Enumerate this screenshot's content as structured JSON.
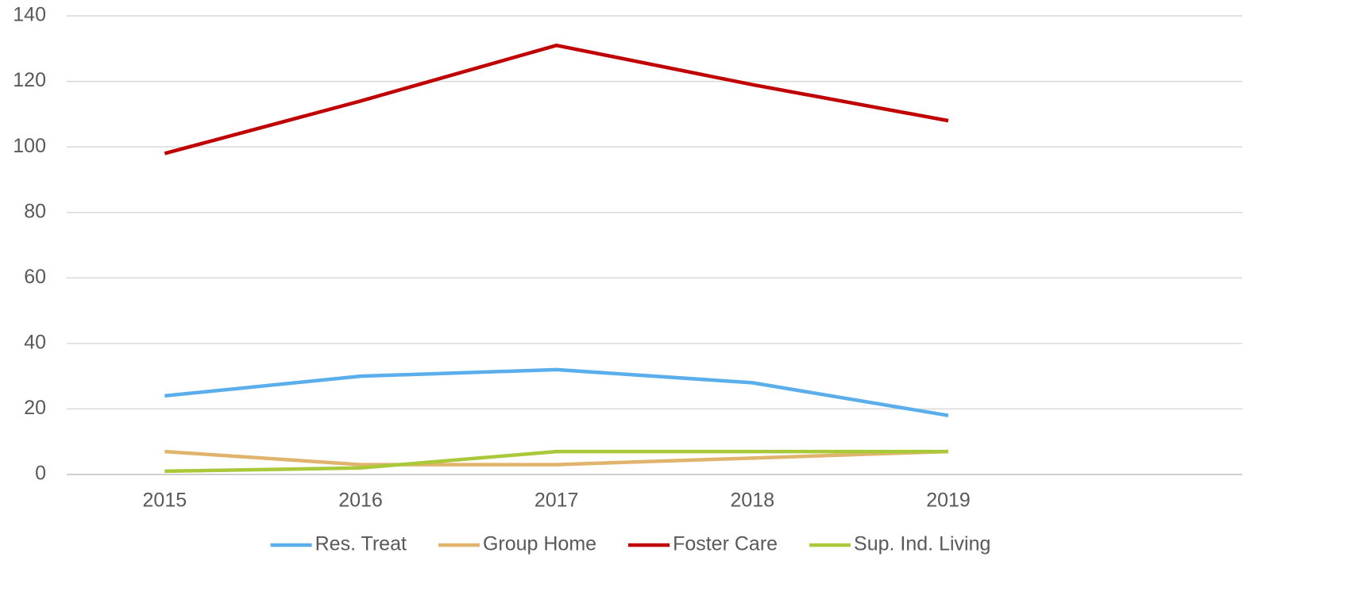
{
  "chart_data": {
    "type": "line",
    "categories": [
      "2015",
      "2016",
      "2017",
      "2018",
      "2019",
      null
    ],
    "series": [
      {
        "name": "Res. Treat",
        "color": "#5aaeeb",
        "values": [
          24,
          30,
          32,
          28,
          18,
          null
        ]
      },
      {
        "name": "Group Home",
        "color": "#e1b46e",
        "values": [
          7,
          3,
          3,
          5,
          7,
          null
        ]
      },
      {
        "name": "Foster Care",
        "color": "#c00000",
        "values": [
          98,
          114,
          131,
          119,
          108,
          null
        ]
      },
      {
        "name": "Sup. Ind. Living",
        "color": "#a9c93a",
        "values": [
          1,
          2,
          7,
          7,
          7,
          null
        ]
      }
    ],
    "ylim": [
      0,
      140
    ],
    "yticks": [
      0,
      20,
      40,
      60,
      80,
      100,
      120,
      140
    ],
    "grid": true,
    "legend": "bottom"
  }
}
